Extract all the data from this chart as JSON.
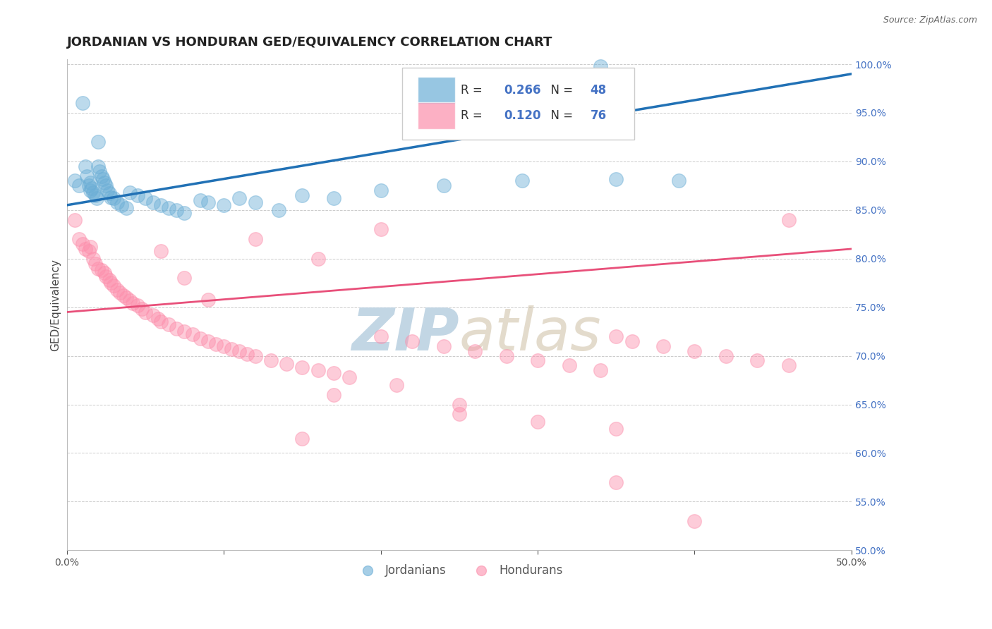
{
  "title": "JORDANIAN VS HONDURAN GED/EQUIVALENCY CORRELATION CHART",
  "source": "Source: ZipAtlas.com",
  "ylabel": "GED/Equivalency",
  "xlim": [
    0.0,
    0.5
  ],
  "ylim": [
    0.5,
    1.005
  ],
  "xticks": [
    0.0,
    0.1,
    0.2,
    0.3,
    0.4,
    0.5
  ],
  "xticklabels": [
    "0.0%",
    "",
    "",
    "",
    "",
    "50.0%"
  ],
  "yticks": [
    0.5,
    0.55,
    0.6,
    0.65,
    0.7,
    0.75,
    0.8,
    0.85,
    0.9,
    0.95,
    1.0
  ],
  "yticklabels_right": [
    "50.0%",
    "55.0%",
    "60.0%",
    "65.0%",
    "70.0%",
    "75.0%",
    "80.0%",
    "85.0%",
    "90.0%",
    "95.0%",
    "100.0%"
  ],
  "background_color": "#ffffff",
  "grid_color": "#cccccc",
  "title_fontsize": 13,
  "axis_label_fontsize": 11,
  "tick_fontsize": 10,
  "blue_color": "#6baed6",
  "pink_color": "#fc8fac",
  "blue_line_color": "#2171b5",
  "pink_line_color": "#e8507a",
  "R_blue": 0.266,
  "N_blue": 48,
  "R_pink": 0.12,
  "N_pink": 76,
  "legend_label_blue": "Jordanians",
  "legend_label_pink": "Hondurans",
  "blue_scatter_x": [
    0.005,
    0.008,
    0.01,
    0.012,
    0.013,
    0.014,
    0.015,
    0.015,
    0.016,
    0.017,
    0.018,
    0.019,
    0.02,
    0.02,
    0.021,
    0.022,
    0.023,
    0.024,
    0.025,
    0.026,
    0.027,
    0.028,
    0.03,
    0.032,
    0.035,
    0.038,
    0.04,
    0.045,
    0.05,
    0.055,
    0.06,
    0.065,
    0.07,
    0.075,
    0.085,
    0.09,
    0.1,
    0.11,
    0.12,
    0.135,
    0.15,
    0.17,
    0.2,
    0.24,
    0.29,
    0.35,
    0.39,
    0.34
  ],
  "blue_scatter_y": [
    0.88,
    0.875,
    0.96,
    0.895,
    0.885,
    0.875,
    0.87,
    0.878,
    0.872,
    0.868,
    0.865,
    0.862,
    0.92,
    0.895,
    0.89,
    0.885,
    0.882,
    0.878,
    0.875,
    0.87,
    0.867,
    0.863,
    0.862,
    0.858,
    0.855,
    0.852,
    0.868,
    0.865,
    0.862,
    0.858,
    0.855,
    0.852,
    0.85,
    0.847,
    0.86,
    0.858,
    0.855,
    0.862,
    0.858,
    0.85,
    0.865,
    0.862,
    0.87,
    0.875,
    0.88,
    0.882,
    0.88,
    0.998
  ],
  "pink_scatter_x": [
    0.005,
    0.008,
    0.01,
    0.012,
    0.014,
    0.015,
    0.017,
    0.018,
    0.02,
    0.022,
    0.024,
    0.025,
    0.027,
    0.028,
    0.03,
    0.032,
    0.034,
    0.036,
    0.038,
    0.04,
    0.042,
    0.045,
    0.048,
    0.05,
    0.055,
    0.058,
    0.06,
    0.065,
    0.07,
    0.075,
    0.08,
    0.085,
    0.09,
    0.095,
    0.1,
    0.105,
    0.11,
    0.115,
    0.12,
    0.13,
    0.14,
    0.15,
    0.16,
    0.17,
    0.18,
    0.2,
    0.22,
    0.24,
    0.26,
    0.28,
    0.3,
    0.32,
    0.34,
    0.35,
    0.36,
    0.38,
    0.4,
    0.42,
    0.44,
    0.46,
    0.06,
    0.075,
    0.09,
    0.12,
    0.16,
    0.2,
    0.25,
    0.3,
    0.35,
    0.4,
    0.15,
    0.25,
    0.35,
    0.17,
    0.21,
    0.46
  ],
  "pink_scatter_y": [
    0.84,
    0.82,
    0.815,
    0.81,
    0.808,
    0.812,
    0.8,
    0.795,
    0.79,
    0.788,
    0.785,
    0.782,
    0.778,
    0.775,
    0.772,
    0.768,
    0.765,
    0.762,
    0.76,
    0.757,
    0.754,
    0.752,
    0.748,
    0.745,
    0.742,
    0.738,
    0.735,
    0.732,
    0.728,
    0.725,
    0.722,
    0.718,
    0.715,
    0.712,
    0.71,
    0.707,
    0.705,
    0.702,
    0.7,
    0.695,
    0.692,
    0.688,
    0.685,
    0.682,
    0.678,
    0.72,
    0.715,
    0.71,
    0.705,
    0.7,
    0.695,
    0.69,
    0.685,
    0.72,
    0.715,
    0.71,
    0.705,
    0.7,
    0.695,
    0.69,
    0.808,
    0.78,
    0.758,
    0.82,
    0.8,
    0.83,
    0.65,
    0.632,
    0.57,
    0.53,
    0.615,
    0.64,
    0.625,
    0.66,
    0.67,
    0.84
  ],
  "watermark_zip_color": "#b8cfe0",
  "watermark_atlas_color": "#c8b89a",
  "watermark_fontsize": 60
}
